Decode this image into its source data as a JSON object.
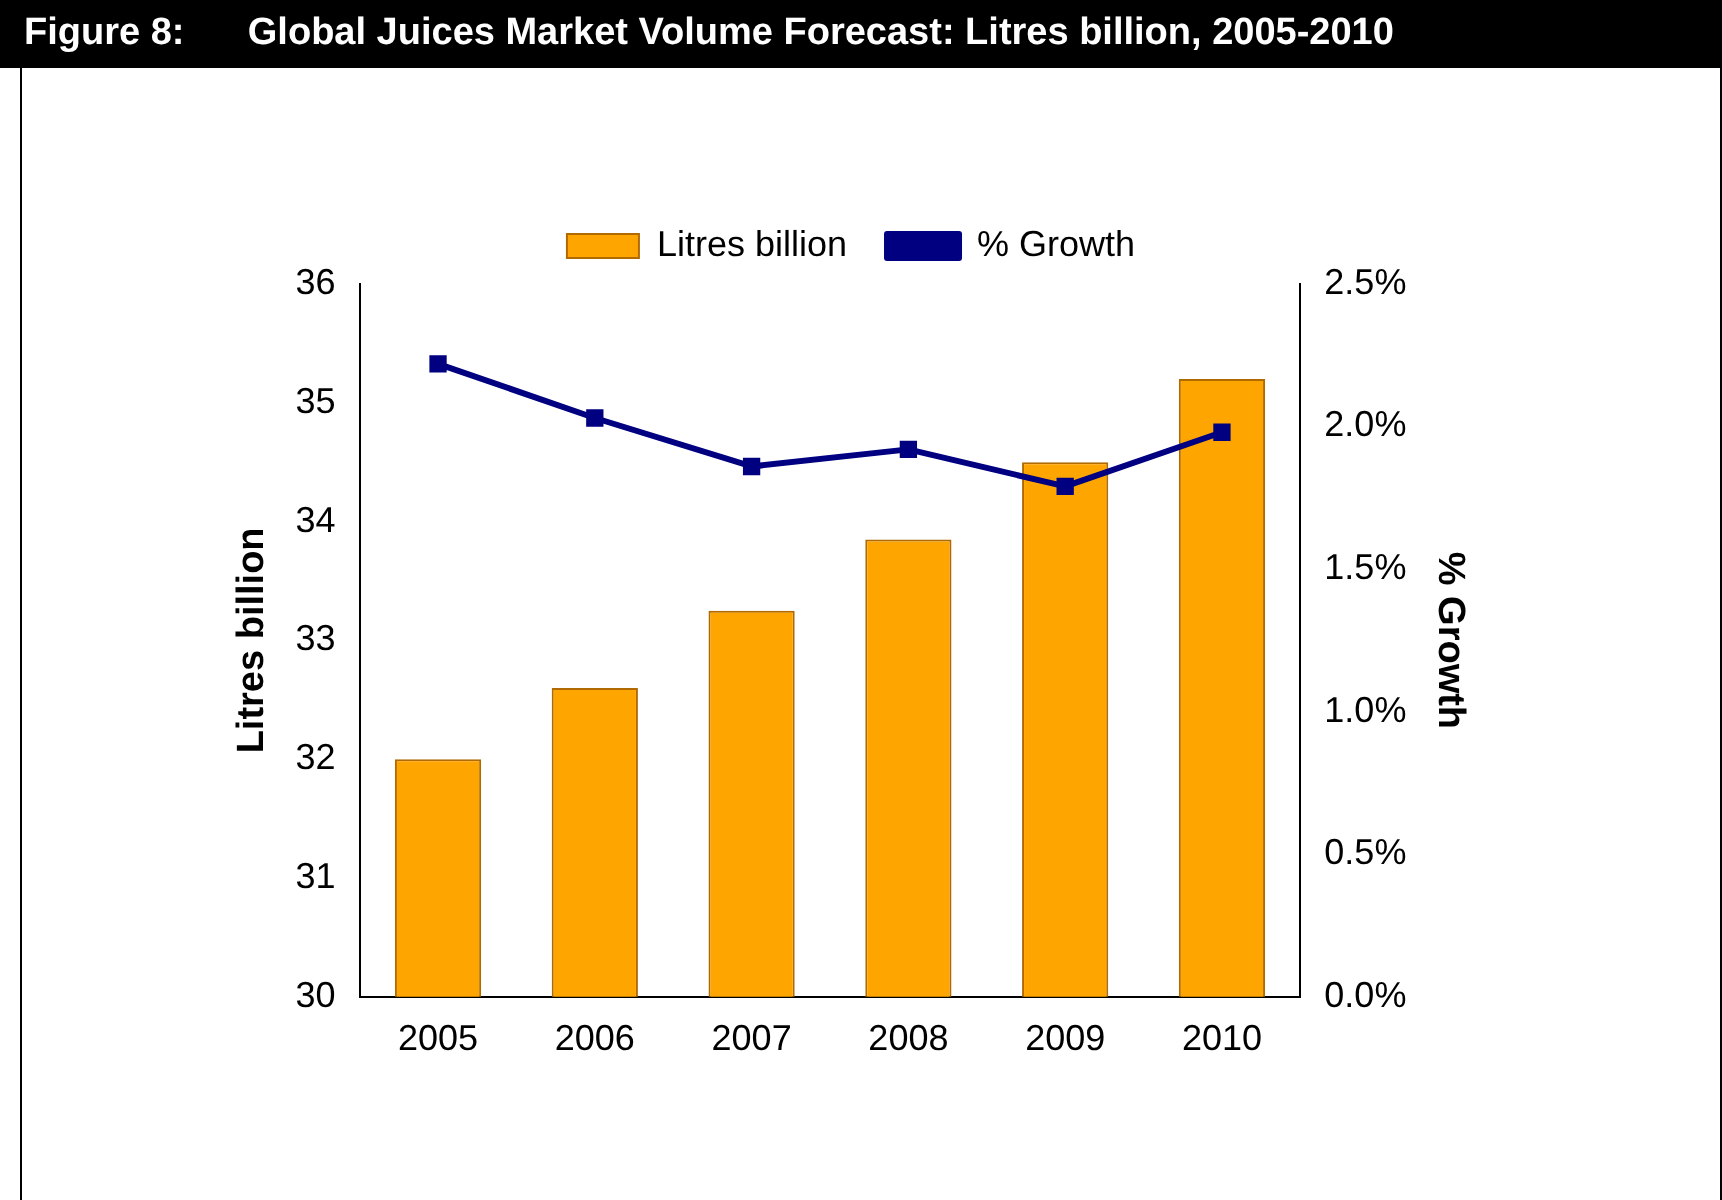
{
  "chart_data": {
    "type": "bar",
    "title": "Figure 8:      Global Juices Market Volume Forecast: Litres billion, 2005-2010",
    "categories": [
      "2005",
      "2006",
      "2007",
      "2008",
      "2009",
      "2010"
    ],
    "series": [
      {
        "name": "Litres billion",
        "color": "#ffa500",
        "values": [
          32.0,
          32.6,
          33.25,
          33.85,
          34.5,
          35.2
        ]
      },
      {
        "name": "% Growth",
        "type": "line",
        "axis": "y2",
        "color": "#000080",
        "values": [
          2.22,
          2.03,
          1.86,
          1.92,
          1.79,
          1.98
        ]
      }
    ],
    "ylabel": "Litres billion",
    "y2label": "% Growth",
    "ylim": [
      30,
      36
    ],
    "yticks": [
      30,
      31,
      32,
      33,
      34,
      35,
      36
    ],
    "y2lim": [
      0,
      2.5
    ],
    "y2ticks": [
      {
        "value": 0,
        "label": "0.0%"
      },
      {
        "value": 0.5,
        "label": "0.5%"
      },
      {
        "value": 1,
        "label": "1.0%"
      },
      {
        "value": 1.5,
        "label": "1.5%"
      },
      {
        "value": 2,
        "label": "2.0%"
      },
      {
        "value": 2.5,
        "label": "2.5%"
      }
    ],
    "legend": "top",
    "marker": "square",
    "line_style": "solid",
    "grid": false
  }
}
